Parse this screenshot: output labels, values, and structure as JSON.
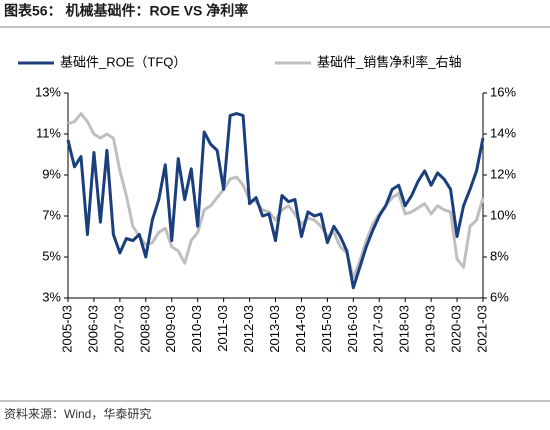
{
  "chart_data": {
    "type": "line",
    "title": "图表56：  机械基础件：ROE VS  净利率",
    "source": "资料来源：Wind，华泰研究",
    "categories": [
      "2005-03",
      null,
      null,
      null,
      "2006-03",
      null,
      null,
      null,
      "2007-03",
      null,
      null,
      null,
      "2008-03",
      null,
      null,
      null,
      "2009-03",
      null,
      null,
      null,
      "2010-03",
      null,
      null,
      null,
      "2011-03",
      null,
      null,
      null,
      "2012-03",
      null,
      null,
      null,
      "2013-03",
      null,
      null,
      null,
      "2014-03",
      null,
      null,
      null,
      "2015-03",
      null,
      null,
      null,
      "2016-03",
      null,
      null,
      null,
      "2017-03",
      null,
      null,
      null,
      "2018-03",
      null,
      null,
      null,
      "2019-03",
      null,
      null,
      null,
      "2020-03",
      null,
      null,
      null,
      "2021-03"
    ],
    "series": [
      {
        "name": "基础件_ROE（TFQ）",
        "color": "#1b3f7c",
        "axis": "y",
        "values": [
          10.7,
          9.4,
          9.9,
          6.1,
          10.1,
          6.7,
          10.2,
          6.1,
          5.2,
          5.9,
          5.8,
          6.1,
          5.0,
          6.8,
          7.8,
          9.5,
          5.8,
          9.8,
          7.8,
          9.3,
          6.5,
          11.1,
          10.5,
          10.2,
          8.3,
          11.9,
          12.0,
          11.9,
          7.6,
          7.9,
          7.0,
          7.1,
          5.8,
          8.0,
          7.7,
          7.8,
          6.0,
          7.2,
          7.0,
          7.1,
          5.7,
          6.5,
          6.0,
          5.3,
          3.5,
          4.5,
          5.5,
          6.3,
          7.0,
          7.5,
          8.3,
          8.5,
          7.5,
          8.0,
          8.7,
          9.2,
          8.5,
          9.1,
          8.8,
          8.3,
          6.0,
          7.5,
          8.3,
          9.2,
          10.8
        ]
      },
      {
        "name": "基础件_销售净利率_右轴",
        "color": "#bfbfbf",
        "axis": "y2",
        "values": [
          14.5,
          14.6,
          15.0,
          14.6,
          14.0,
          13.8,
          14.0,
          13.8,
          12.2,
          11.0,
          9.5,
          9.0,
          8.6,
          8.7,
          9.2,
          9.4,
          8.5,
          8.3,
          7.7,
          8.8,
          9.2,
          10.3,
          10.5,
          10.9,
          11.3,
          11.8,
          11.9,
          11.5,
          10.8,
          10.7,
          10.3,
          10.2,
          9.8,
          10.3,
          10.5,
          10.1,
          9.6,
          9.9,
          9.8,
          9.5,
          9.0,
          9.2,
          8.5,
          8.2,
          7.0,
          7.8,
          8.8,
          9.6,
          10.1,
          10.5,
          10.9,
          11.1,
          10.1,
          10.2,
          10.4,
          10.6,
          10.1,
          10.5,
          10.3,
          10.2,
          7.9,
          7.5,
          9.5,
          9.8,
          10.9
        ]
      }
    ],
    "ylim": [
      3,
      13
    ],
    "yticks": [
      {
        "value": 3,
        "label": "3%"
      },
      {
        "value": 5,
        "label": "5%"
      },
      {
        "value": 7,
        "label": "7%"
      },
      {
        "value": 9,
        "label": "9%"
      },
      {
        "value": 11,
        "label": "11%"
      },
      {
        "value": 13,
        "label": "13%"
      }
    ],
    "y2lim": [
      6,
      16
    ],
    "y2ticks": [
      {
        "value": 6,
        "label": "6%"
      },
      {
        "value": 8,
        "label": "8%"
      },
      {
        "value": 10,
        "label": "10%"
      },
      {
        "value": 12,
        "label": "12%"
      },
      {
        "value": 14,
        "label": "14%"
      },
      {
        "value": 16,
        "label": "16%"
      }
    ],
    "grid": false,
    "legend": "top"
  }
}
